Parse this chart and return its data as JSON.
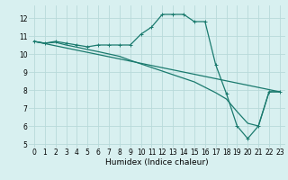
{
  "title": "",
  "xlabel": "Humidex (Indice chaleur)",
  "background_color": "#d8f0f0",
  "grid_color": "#b8dada",
  "line_color": "#1a7a6e",
  "xlim": [
    -0.5,
    23.5
  ],
  "ylim": [
    4.8,
    12.7
  ],
  "yticks": [
    5,
    6,
    7,
    8,
    9,
    10,
    11,
    12
  ],
  "xticks": [
    0,
    1,
    2,
    3,
    4,
    5,
    6,
    7,
    8,
    9,
    10,
    11,
    12,
    13,
    14,
    15,
    16,
    17,
    18,
    19,
    20,
    21,
    22,
    23
  ],
  "line1_x": [
    0,
    1,
    2,
    3,
    4,
    5,
    6,
    7,
    8,
    9,
    10,
    11,
    12,
    13,
    14,
    15,
    16,
    17,
    18,
    19,
    20,
    21,
    22,
    23
  ],
  "line1_y": [
    10.7,
    10.6,
    10.7,
    10.6,
    10.5,
    10.4,
    10.5,
    10.5,
    10.5,
    10.5,
    11.1,
    11.5,
    12.2,
    12.2,
    12.2,
    11.8,
    11.8,
    9.4,
    7.8,
    6.0,
    5.3,
    6.0,
    7.9,
    7.9
  ],
  "line2_x": [
    0,
    1,
    2,
    3,
    4,
    5,
    6,
    7,
    8,
    9,
    10,
    11,
    12,
    13,
    14,
    15,
    16,
    17,
    18,
    19,
    20,
    21,
    22,
    23
  ],
  "line2_y": [
    10.7,
    10.6,
    10.65,
    10.5,
    10.38,
    10.25,
    10.13,
    10.0,
    9.87,
    9.65,
    9.45,
    9.25,
    9.05,
    8.85,
    8.65,
    8.45,
    8.15,
    7.85,
    7.5,
    6.8,
    6.15,
    6.0,
    7.9,
    7.9
  ],
  "line3_x": [
    0,
    23
  ],
  "line3_y": [
    10.7,
    7.9
  ],
  "xlabel_fontsize": 6.5,
  "tick_fontsize": 5.5
}
